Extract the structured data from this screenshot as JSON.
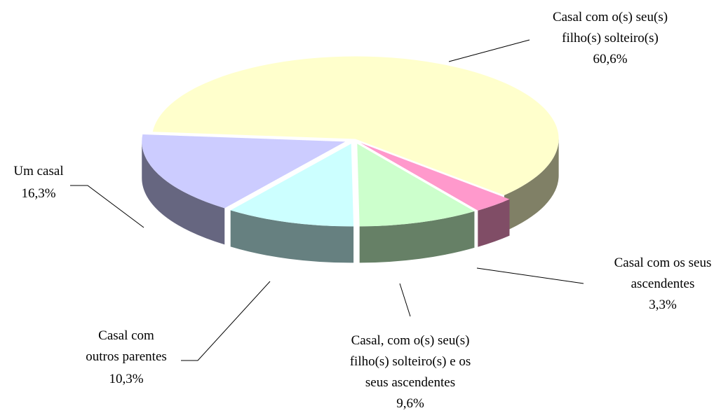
{
  "chart_data": {
    "type": "pie3d",
    "categories": [
      "Casal  com o(s) seu(s)\nfilho(s) solteiro(s)",
      "Casal com os seus\nascendentes",
      "Casal, com o(s) seu(s)\nfilho(s) solteiro(s) e os\nseus ascendentes",
      "Casal com\noutros parentes",
      "Um casal"
    ],
    "values": [
      60.6,
      3.3,
      9.6,
      10.3,
      16.3
    ],
    "value_labels": [
      "60,6%",
      "3,3%",
      "9,6%",
      "10,3%",
      "16,3%"
    ],
    "colors": [
      "#ffffcc",
      "#ff99cc",
      "#ccffcc",
      "#ccffff",
      "#ccccff"
    ]
  }
}
